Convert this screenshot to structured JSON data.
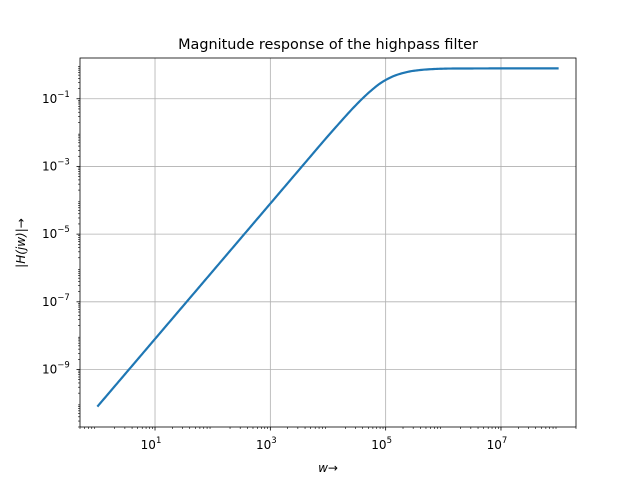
{
  "chart_data": {
    "type": "line",
    "title": "Magnitude response of the highpass filter",
    "xlabel": "w→",
    "ylabel": "|H(jw)|→",
    "xscale": "log",
    "yscale": "log",
    "xlim": [
      0.5,
      200000000.0
    ],
    "ylim": [
      2e-11,
      1.6
    ],
    "grid": true,
    "color": "#1f77b4",
    "x_ticks": [
      {
        "value": 10,
        "mantissa": "10",
        "exp": "1"
      },
      {
        "value": 1000,
        "mantissa": "10",
        "exp": "3"
      },
      {
        "value": 100000,
        "mantissa": "10",
        "exp": "5"
      },
      {
        "value": 10000000,
        "mantissa": "10",
        "exp": "7"
      }
    ],
    "y_ticks": [
      {
        "value": 1e-09,
        "mantissa": "10",
        "exp": "−9"
      },
      {
        "value": 1e-07,
        "mantissa": "10",
        "exp": "−7"
      },
      {
        "value": 1e-05,
        "mantissa": "10",
        "exp": "−5"
      },
      {
        "value": 0.001,
        "mantissa": "10",
        "exp": "−3"
      },
      {
        "value": 0.1,
        "mantissa": "10",
        "exp": "−1"
      }
    ],
    "series": [
      {
        "x": [
          1,
          10,
          100,
          1000,
          10000,
          30000,
          60000,
          100000,
          200000,
          400000,
          1000000,
          10000000,
          100000000
        ],
        "y": [
          8e-11,
          8e-09,
          8e-07,
          8e-05,
          0.008,
          0.065,
          0.2,
          0.38,
          0.6,
          0.72,
          0.78,
          0.79,
          0.79
        ]
      }
    ]
  }
}
